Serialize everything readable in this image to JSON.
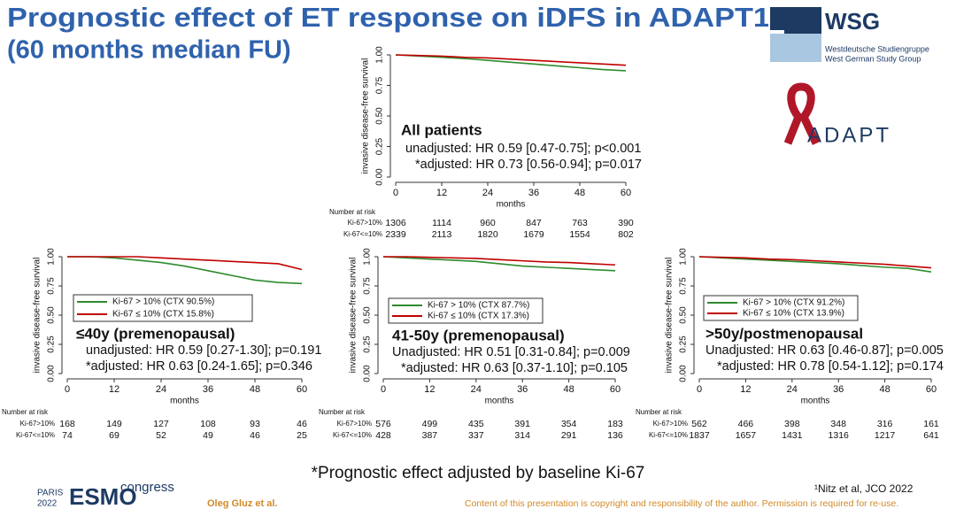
{
  "slide": {
    "title": "Prognostic effect of ET response on iDFS in ADAPT1",
    "subtitle": "(60 months median FU)",
    "footnote": "*Prognostic effect adjusted by baseline Ki-67",
    "reference": "¹Nitz et al, JCO 2022",
    "author": "Oleg Gluz et al.",
    "copyright": "Content of this presentation is copyright and responsibility of the author. Permission is required for re-use.",
    "logos": {
      "wsg": "WSG",
      "wsg_line1": "Westdeutsche Studiengruppe",
      "wsg_line2": "West German Study Group",
      "adapt": "ADAPT",
      "esmo_city": "PARIS",
      "esmo_year": "2022",
      "esmo": "ESMO",
      "esmo_congress": "congress"
    }
  },
  "chart_data": [
    {
      "type": "line",
      "xlabel": "months",
      "ylabel": "invasive disease-free survival",
      "x": [
        0,
        6,
        12,
        18,
        24,
        30,
        36,
        42,
        48,
        54,
        60
      ],
      "series": [
        {
          "color": "#2e8b2e",
          "values": [
            1,
            0.99,
            0.98,
            0.97,
            0.955,
            0.94,
            0.925,
            0.91,
            0.895,
            0.88,
            0.87
          ]
        },
        {
          "color": "#c00000",
          "values": [
            1,
            0.995,
            0.99,
            0.98,
            0.975,
            0.965,
            0.955,
            0.945,
            0.935,
            0.925,
            0.915
          ]
        }
      ],
      "xlim": [
        0,
        60
      ],
      "xticks": [
        0,
        12,
        24,
        36,
        48,
        60
      ],
      "ylim": [
        0,
        1
      ],
      "yticks": [
        {
          "value": 0,
          "label": "0.00"
        },
        {
          "value": 0.25,
          "label": "0.25"
        },
        {
          "value": 0.5,
          "label": "0.50"
        },
        {
          "value": 0.75,
          "label": "0.75"
        },
        {
          "value": 1,
          "label": "1.00"
        }
      ],
      "annotations": [
        "All patients",
        "unadjusted: HR 0.59 [0.47-0.75]; p<0.001",
        "*adjusted: HR 0.73 [0.56-0.94]; p=0.017"
      ],
      "risk_table": {
        "title": "Number at risk",
        "rows": [
          {
            "label": "Ki-67>10%",
            "values": [
              1306,
              1114,
              960,
              847,
              763,
              390
            ]
          },
          {
            "label": "Ki-67<=10%",
            "values": [
              2339,
              2113,
              1820,
              1679,
              1554,
              802
            ]
          }
        ]
      }
    },
    {
      "type": "line",
      "xlabel": "months",
      "ylabel": "invasive disease-free survival",
      "x": [
        0,
        6,
        12,
        18,
        24,
        30,
        36,
        42,
        48,
        54,
        60
      ],
      "series": [
        {
          "name": "Ki-67 > 10%  (CTX 90.5%)",
          "color": "#2e8b2e",
          "values": [
            1,
            1,
            0.99,
            0.97,
            0.95,
            0.92,
            0.88,
            0.84,
            0.8,
            0.78,
            0.77
          ]
        },
        {
          "name": "Ki-67 ≤ 10%  (CTX 15.8%)",
          "color": "#c00000",
          "values": [
            1,
            1,
            1,
            1,
            0.99,
            0.98,
            0.97,
            0.96,
            0.95,
            0.94,
            0.89
          ]
        }
      ],
      "xlim": [
        0,
        60
      ],
      "xticks": [
        0,
        12,
        24,
        36,
        48,
        60
      ],
      "ylim": [
        0,
        1
      ],
      "yticks": [
        {
          "value": 0,
          "label": "0.00"
        },
        {
          "value": 0.25,
          "label": "0.25"
        },
        {
          "value": 0.5,
          "label": "0.50"
        },
        {
          "value": 0.75,
          "label": "0.75"
        },
        {
          "value": 1,
          "label": "1.00"
        }
      ],
      "annotations": [
        "≤40y (premenopausal)",
        "unadjusted: HR 0.59 [0.27-1.30]; p=0.191",
        "*adjusted: HR 0.63 [0.24-1.65]; p=0.346"
      ],
      "risk_table": {
        "title": "Number at risk",
        "rows": [
          {
            "label": "Ki-67>10%",
            "values": [
              168,
              149,
              127,
              108,
              93,
              46
            ]
          },
          {
            "label": "Ki-67<=10%",
            "values": [
              74,
              69,
              52,
              49,
              46,
              25
            ]
          }
        ]
      }
    },
    {
      "type": "line",
      "xlabel": "months",
      "ylabel": "invasive disease-free survival",
      "x": [
        0,
        6,
        12,
        18,
        24,
        30,
        36,
        42,
        48,
        54,
        60
      ],
      "series": [
        {
          "name": "Ki-67 > 10%  (CTX 87.7%)",
          "color": "#2e8b2e",
          "values": [
            1,
            0.99,
            0.98,
            0.97,
            0.96,
            0.94,
            0.92,
            0.91,
            0.9,
            0.89,
            0.88
          ]
        },
        {
          "name": "Ki-67 ≤ 10%  (CTX 17.3%)",
          "color": "#c00000",
          "values": [
            1,
            1,
            0.995,
            0.99,
            0.985,
            0.975,
            0.965,
            0.955,
            0.95,
            0.94,
            0.93
          ]
        }
      ],
      "xlim": [
        0,
        60
      ],
      "xticks": [
        0,
        12,
        24,
        36,
        48,
        60
      ],
      "ylim": [
        0,
        1
      ],
      "yticks": [
        {
          "value": 0,
          "label": "0.00"
        },
        {
          "value": 0.25,
          "label": "0.25"
        },
        {
          "value": 0.5,
          "label": "0.50"
        },
        {
          "value": 0.75,
          "label": "0.75"
        },
        {
          "value": 1,
          "label": "1.00"
        }
      ],
      "annotations": [
        "41-50y (premenopausal)",
        "Unadjusted: HR 0.51 [0.31-0.84]; p=0.009",
        "*adjusted: HR 0.63 [0.37-1.10]; p=0.105"
      ],
      "risk_table": {
        "title": "Number at risk",
        "rows": [
          {
            "label": "Ki-67>10%",
            "values": [
              576,
              499,
              435,
              391,
              354,
              183
            ]
          },
          {
            "label": "Ki-67<=10%",
            "values": [
              428,
              387,
              337,
              314,
              291,
              136
            ]
          }
        ]
      }
    },
    {
      "type": "line",
      "xlabel": "months",
      "ylabel": "invasive disease-free survival",
      "x": [
        0,
        6,
        12,
        18,
        24,
        30,
        36,
        42,
        48,
        54,
        60
      ],
      "series": [
        {
          "name": "Ki-67 > 10%  (CTX 91.2%)",
          "color": "#2e8b2e",
          "values": [
            1,
            0.99,
            0.98,
            0.97,
            0.96,
            0.95,
            0.94,
            0.925,
            0.91,
            0.9,
            0.87
          ]
        },
        {
          "name": "Ki-67 ≤ 10%  (CTX 13.9%)",
          "color": "#c00000",
          "values": [
            1,
            0.995,
            0.99,
            0.98,
            0.975,
            0.965,
            0.955,
            0.945,
            0.935,
            0.92,
            0.905
          ]
        }
      ],
      "xlim": [
        0,
        60
      ],
      "xticks": [
        0,
        12,
        24,
        36,
        48,
        60
      ],
      "ylim": [
        0,
        1
      ],
      "yticks": [
        {
          "value": 0,
          "label": "0.00"
        },
        {
          "value": 0.25,
          "label": "0.25"
        },
        {
          "value": 0.5,
          "label": "0.50"
        },
        {
          "value": 0.75,
          "label": "0.75"
        },
        {
          "value": 1,
          "label": "1.00"
        }
      ],
      "annotations": [
        ">50y/postmenopausal",
        "Unadjusted: HR 0.63 [0.46-0.87]; p=0.005",
        "*adjusted: HR 0.78 [0.54-1.12]; p=0.174"
      ],
      "risk_table": {
        "title": "Number at risk",
        "rows": [
          {
            "label": "Ki-67>10%",
            "values": [
              562,
              466,
              398,
              348,
              316,
              161
            ]
          },
          {
            "label": "Ki-67<=10%",
            "values": [
              1837,
              1657,
              1431,
              1316,
              1217,
              641
            ]
          }
        ]
      }
    }
  ]
}
